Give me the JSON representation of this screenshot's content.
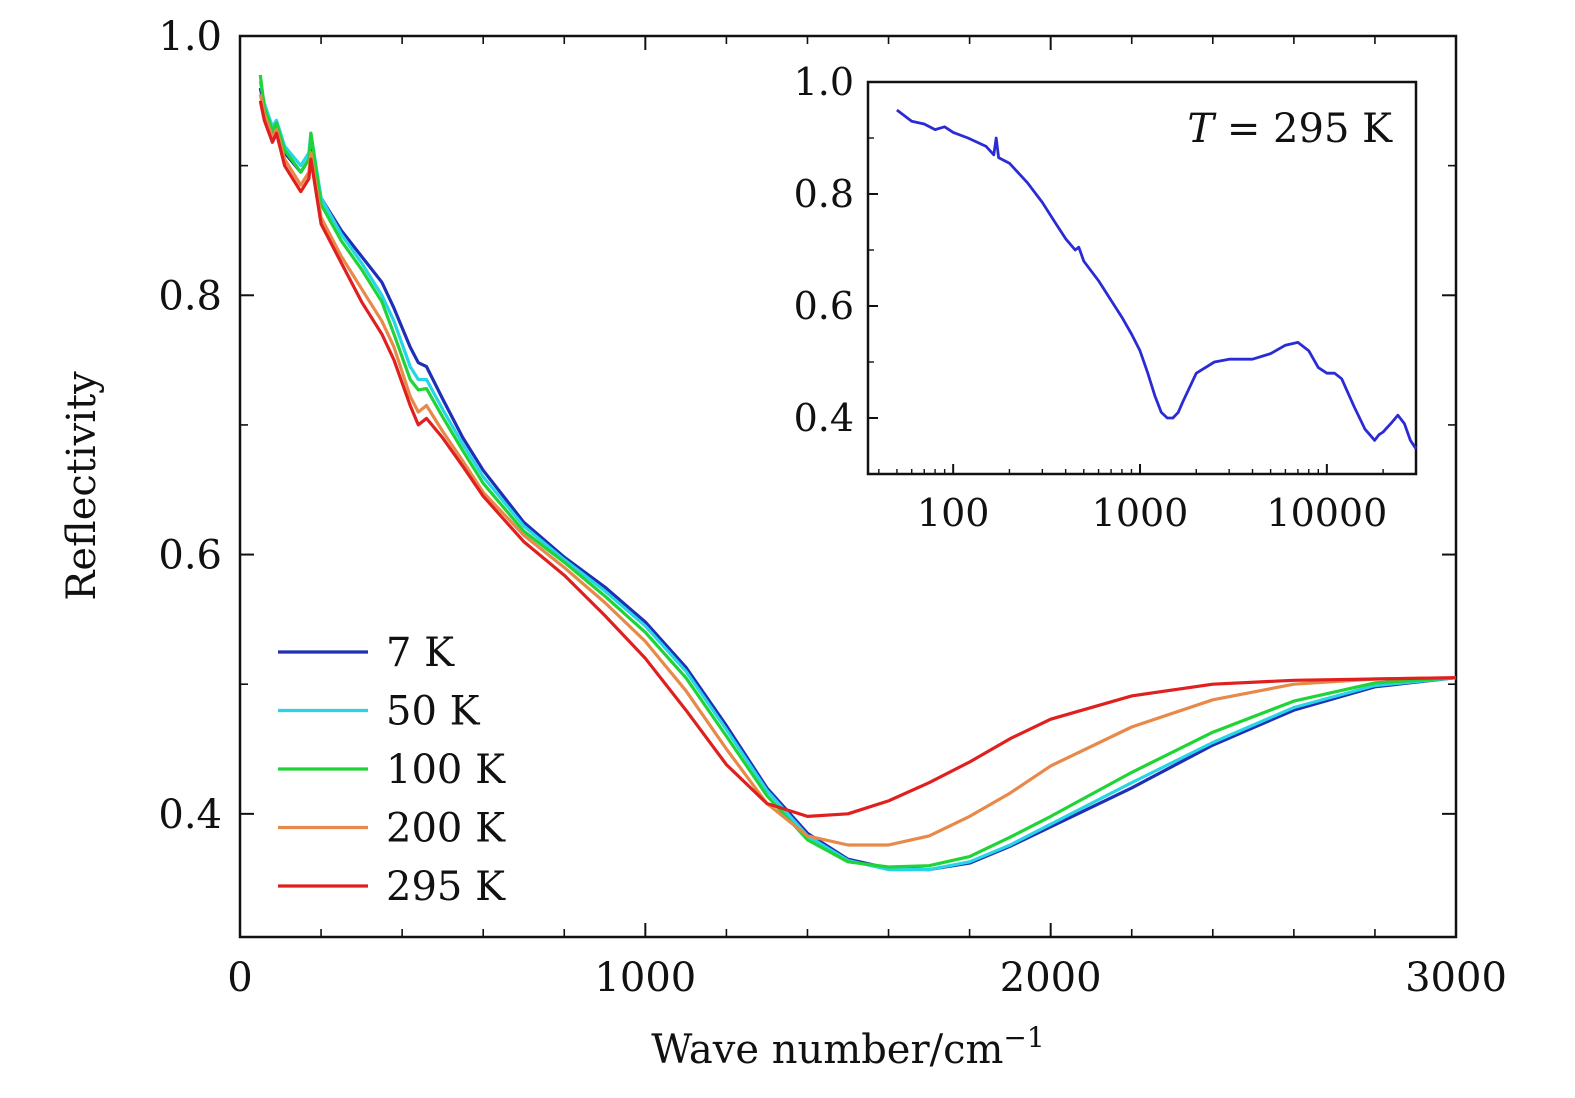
{
  "chart_data": [
    {
      "id": "main",
      "type": "line",
      "title": "",
      "xlabel": "Wave number/cm",
      "xlabel_superscript": "−1",
      "ylabel": "Reflectivity",
      "xlim": [
        0,
        3000
      ],
      "ylim": [
        0.305,
        1.0
      ],
      "x_ticks": [
        0,
        1000,
        2000,
        3000
      ],
      "x_tick_labels": [
        "0",
        "1000",
        "2000",
        "3000"
      ],
      "x_minor_step": 200,
      "y_ticks": [
        0.4,
        0.6,
        0.8,
        1.0
      ],
      "y_tick_labels": [
        "0.4",
        "0.6",
        "0.8",
        "1.0"
      ],
      "y_minor_step": 0.1,
      "legend_position": "bottom-left",
      "series": [
        {
          "name": "7 K",
          "color": "#1f2fb5",
          "x": [
            50,
            60,
            80,
            90,
            110,
            150,
            170,
            175,
            200,
            250,
            300,
            350,
            380,
            420,
            440,
            460,
            500,
            550,
            600,
            700,
            800,
            900,
            1000,
            1100,
            1200,
            1300,
            1400,
            1500,
            1600,
            1700,
            1800,
            1900,
            2000,
            2200,
            2400,
            2600,
            2800,
            3000
          ],
          "y": [
            0.96,
            0.945,
            0.925,
            0.93,
            0.91,
            0.895,
            0.905,
            0.92,
            0.875,
            0.85,
            0.83,
            0.81,
            0.79,
            0.76,
            0.748,
            0.745,
            0.72,
            0.69,
            0.665,
            0.625,
            0.598,
            0.575,
            0.548,
            0.513,
            0.468,
            0.42,
            0.385,
            0.365,
            0.358,
            0.357,
            0.362,
            0.375,
            0.39,
            0.42,
            0.453,
            0.48,
            0.498,
            0.505
          ]
        },
        {
          "name": "50 K",
          "color": "#27d6e6",
          "x": [
            50,
            60,
            80,
            90,
            110,
            150,
            170,
            175,
            200,
            250,
            300,
            350,
            380,
            420,
            440,
            460,
            500,
            550,
            600,
            700,
            800,
            900,
            1000,
            1100,
            1200,
            1300,
            1400,
            1500,
            1600,
            1700,
            1800,
            1900,
            2000,
            2200,
            2400,
            2600,
            2800,
            3000
          ],
          "y": [
            0.965,
            0.948,
            0.93,
            0.935,
            0.915,
            0.9,
            0.91,
            0.925,
            0.875,
            0.847,
            0.825,
            0.8,
            0.78,
            0.745,
            0.735,
            0.735,
            0.712,
            0.685,
            0.66,
            0.622,
            0.596,
            0.572,
            0.545,
            0.51,
            0.465,
            0.418,
            0.383,
            0.364,
            0.357,
            0.357,
            0.363,
            0.376,
            0.392,
            0.424,
            0.455,
            0.482,
            0.499,
            0.505
          ]
        },
        {
          "name": "100 K",
          "color": "#20d437",
          "x": [
            50,
            60,
            80,
            90,
            110,
            150,
            170,
            175,
            200,
            250,
            300,
            350,
            380,
            420,
            440,
            460,
            500,
            550,
            600,
            700,
            800,
            900,
            1000,
            1100,
            1200,
            1300,
            1400,
            1500,
            1600,
            1700,
            1800,
            1900,
            2000,
            2200,
            2400,
            2600,
            2800,
            3000
          ],
          "y": [
            0.97,
            0.945,
            0.927,
            0.933,
            0.912,
            0.895,
            0.905,
            0.925,
            0.87,
            0.842,
            0.82,
            0.795,
            0.77,
            0.735,
            0.727,
            0.728,
            0.706,
            0.68,
            0.655,
            0.618,
            0.594,
            0.568,
            0.54,
            0.505,
            0.46,
            0.414,
            0.38,
            0.363,
            0.359,
            0.36,
            0.367,
            0.382,
            0.398,
            0.432,
            0.463,
            0.487,
            0.501,
            0.505
          ]
        },
        {
          "name": "200 K",
          "color": "#e8894a",
          "x": [
            50,
            60,
            80,
            90,
            110,
            150,
            170,
            175,
            200,
            250,
            300,
            350,
            380,
            420,
            440,
            460,
            500,
            550,
            600,
            700,
            800,
            900,
            1000,
            1100,
            1200,
            1300,
            1400,
            1500,
            1600,
            1700,
            1800,
            1900,
            2000,
            2200,
            2400,
            2600,
            2800,
            3000
          ],
          "y": [
            0.955,
            0.94,
            0.922,
            0.928,
            0.905,
            0.885,
            0.895,
            0.91,
            0.86,
            0.83,
            0.805,
            0.78,
            0.76,
            0.722,
            0.71,
            0.715,
            0.695,
            0.672,
            0.648,
            0.615,
            0.59,
            0.563,
            0.533,
            0.495,
            0.45,
            0.408,
            0.383,
            0.376,
            0.376,
            0.383,
            0.398,
            0.416,
            0.437,
            0.467,
            0.488,
            0.5,
            0.504,
            0.505
          ]
        },
        {
          "name": "295 K",
          "color": "#e01f1f",
          "x": [
            50,
            60,
            80,
            90,
            110,
            150,
            170,
            175,
            200,
            250,
            300,
            350,
            380,
            420,
            440,
            460,
            500,
            550,
            600,
            700,
            800,
            900,
            1000,
            1100,
            1200,
            1300,
            1400,
            1500,
            1600,
            1700,
            1800,
            1900,
            2000,
            2200,
            2400,
            2600,
            2800,
            3000
          ],
          "y": [
            0.95,
            0.935,
            0.918,
            0.925,
            0.9,
            0.88,
            0.89,
            0.905,
            0.855,
            0.825,
            0.795,
            0.77,
            0.75,
            0.715,
            0.7,
            0.705,
            0.69,
            0.668,
            0.645,
            0.61,
            0.584,
            0.553,
            0.52,
            0.48,
            0.438,
            0.408,
            0.398,
            0.4,
            0.41,
            0.424,
            0.44,
            0.458,
            0.473,
            0.491,
            0.5,
            0.503,
            0.504,
            0.505
          ]
        }
      ]
    },
    {
      "id": "inset",
      "type": "line",
      "xscale": "log",
      "xlim": [
        35,
        30000
      ],
      "ylim": [
        0.3,
        1.0
      ],
      "x_ticks": [
        100,
        1000,
        10000
      ],
      "x_tick_labels": [
        "100",
        "1000",
        "10000"
      ],
      "y_ticks": [
        0.4,
        0.6,
        0.8,
        1.0
      ],
      "y_tick_labels": [
        "0.4",
        "0.6",
        "0.8",
        "1.0"
      ],
      "y_minor_step": 0.1,
      "annotation": {
        "var": "T",
        "text": " = 295  K"
      },
      "series": [
        {
          "name": "295 K",
          "color": "#2b2bd6",
          "x": [
            50,
            60,
            70,
            80,
            90,
            100,
            120,
            150,
            165,
            170,
            175,
            200,
            250,
            300,
            350,
            400,
            450,
            470,
            500,
            600,
            700,
            800,
            900,
            1000,
            1100,
            1200,
            1300,
            1400,
            1500,
            1600,
            1700,
            2000,
            2500,
            3000,
            4000,
            5000,
            6000,
            7000,
            8000,
            9000,
            10000,
            11000,
            12000,
            14000,
            16000,
            17000,
            18000,
            19000,
            20000,
            22000,
            24000,
            26000,
            28000,
            30000
          ],
          "y": [
            0.95,
            0.93,
            0.925,
            0.915,
            0.92,
            0.91,
            0.9,
            0.885,
            0.87,
            0.9,
            0.865,
            0.855,
            0.82,
            0.785,
            0.75,
            0.72,
            0.7,
            0.705,
            0.68,
            0.645,
            0.61,
            0.58,
            0.55,
            0.52,
            0.48,
            0.44,
            0.41,
            0.4,
            0.4,
            0.41,
            0.43,
            0.48,
            0.5,
            0.505,
            0.505,
            0.515,
            0.53,
            0.535,
            0.52,
            0.49,
            0.48,
            0.48,
            0.47,
            0.42,
            0.38,
            0.37,
            0.36,
            0.37,
            0.375,
            0.39,
            0.405,
            0.39,
            0.36,
            0.345
          ]
        }
      ]
    }
  ]
}
